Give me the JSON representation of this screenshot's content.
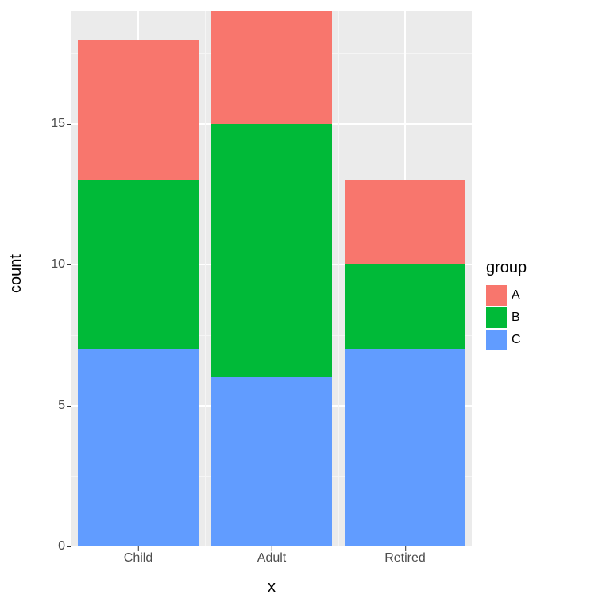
{
  "chart": {
    "type": "bar-stacked",
    "panel_bg": "#ebebeb",
    "grid_major_color": "#ffffff",
    "grid_minor_color": "#f5f5f5",
    "y_label": "count",
    "x_label": "x",
    "ylim": [
      0,
      19
    ],
    "y_ticks": [
      0,
      5,
      10,
      15
    ],
    "y_minor": [
      2.5,
      7.5,
      12.5,
      17.5
    ],
    "categories": [
      "Child",
      "Adult",
      "Retired"
    ],
    "series_order_bottom_to_top": [
      "C",
      "B",
      "A"
    ],
    "colors": {
      "A": "#f8766d",
      "B": "#00ba38",
      "C": "#619cff"
    },
    "data": {
      "Child": {
        "C": 7,
        "B": 6,
        "A": 5
      },
      "Adult": {
        "C": 6,
        "B": 9,
        "A": 4
      },
      "Retired": {
        "C": 7,
        "B": 3,
        "A": 3
      }
    },
    "bar_rel_width": 0.9,
    "legend": {
      "title": "group",
      "items": [
        {
          "key": "A",
          "label": "A"
        },
        {
          "key": "B",
          "label": "B"
        },
        {
          "key": "C",
          "label": "C"
        }
      ]
    },
    "label_fontsize": 20,
    "tick_fontsize": 16,
    "tick_color": "#4d4d4d"
  }
}
